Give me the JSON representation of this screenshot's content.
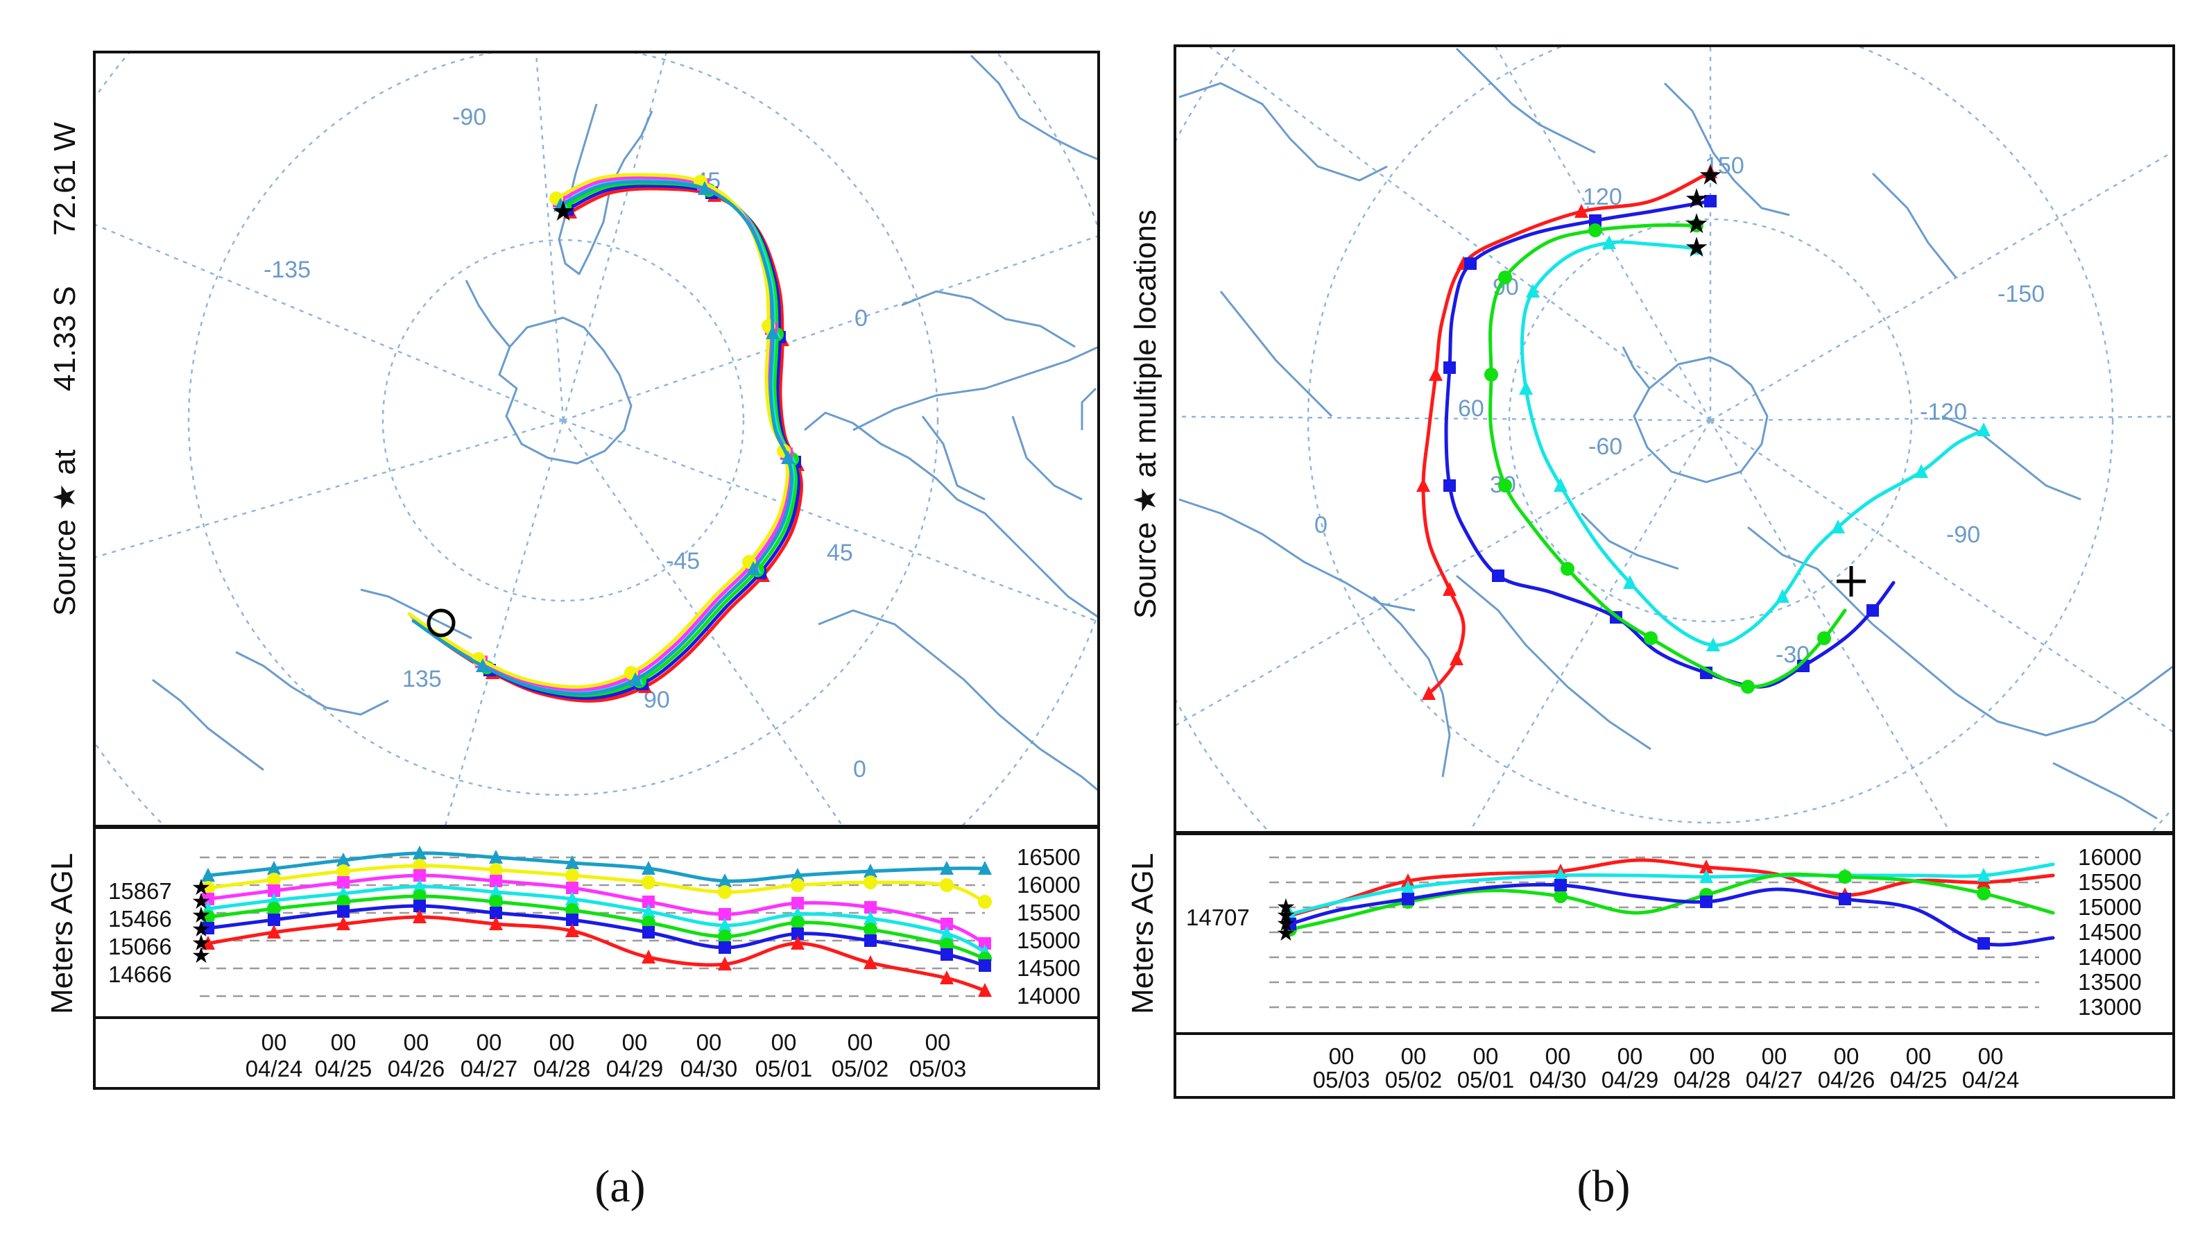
{
  "figure": {
    "panel_a": {
      "caption": "(a)",
      "source_label": "Source ★ at",
      "latitude": "41.33 S",
      "longitude": "72.61 W",
      "map_labels": [
        "-90",
        "-45",
        "-135",
        "0",
        "-45",
        "45",
        "135",
        "90",
        "0"
      ],
      "y_axis_label": "Meters AGL",
      "start_heights": [
        "15867",
        "15466",
        "15066",
        "14666"
      ],
      "right_ticks": [
        "16500",
        "16000",
        "15500",
        "15000",
        "14500",
        "14000"
      ],
      "hour_label": "00",
      "dates": [
        "04/24",
        "04/25",
        "04/26",
        "04/27",
        "04/28",
        "04/29",
        "04/30",
        "05/01",
        "05/02",
        "05/03"
      ]
    },
    "panel_b": {
      "caption": "(b)",
      "source_label": "Source ★ at multiple locations",
      "map_labels": [
        "150",
        "120",
        "90",
        "60",
        "30",
        "0",
        "-60",
        "-30",
        "-150",
        "-120",
        "-90"
      ],
      "y_axis_label": "Meters AGL",
      "start_heights": [
        "14707"
      ],
      "right_ticks": [
        "16000",
        "15500",
        "15000",
        "14500",
        "14000",
        "13500",
        "13000"
      ],
      "hour_label": "00",
      "dates": [
        "05/03",
        "05/02",
        "05/01",
        "04/30",
        "04/29",
        "04/28",
        "04/27",
        "04/26",
        "04/25",
        "04/24"
      ]
    }
  },
  "colors": {
    "red": "#ff1a1a",
    "blue": "#1a1ae6",
    "green": "#11e011",
    "cyan": "#14e6e6",
    "magenta": "#ff33ff",
    "yellow": "#f2f20d",
    "teal": "#1a9ec8",
    "map": "#6a9ccc",
    "grid": "#8ab4dc"
  }
}
